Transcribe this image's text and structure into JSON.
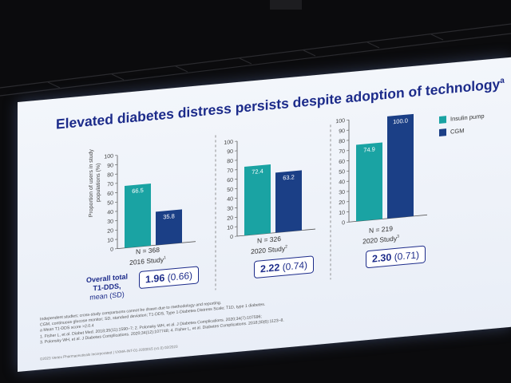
{
  "title": "Elevated diabetes distress persists despite adoption of technology",
  "title_superscript": "a",
  "ylabel_line1": "Proportion of users in study",
  "ylabel_line2": "populations (%)",
  "legend": [
    {
      "label": "Insulin pump",
      "color": "#1aa3a3"
    },
    {
      "label": "CGM",
      "color": "#1b3f86"
    }
  ],
  "panels": [
    {
      "n": "N = 368",
      "study": "2016 Study",
      "sup": "1",
      "mean": "1.96",
      "sd": "(0.66)"
    },
    {
      "n": "N = 326",
      "study": "2020 Study",
      "sup": "2",
      "mean": "2.22",
      "sd": "(0.74)"
    },
    {
      "n": "N = 219",
      "study": "2020 Study",
      "sup": "3",
      "mean": "2.30",
      "sd": "(0.71)"
    }
  ],
  "overall_label": {
    "line1": "Overall total",
    "line2": "T1-DDS,",
    "line3": "mean (SD)"
  },
  "footnotes": [
    "Independent studies; cross-study comparisons cannot be drawn due to methodology and reporting.",
    "CGM, continuous glucose monitor; SD, standard deviation; T1-DDS, Type 1-Diabetes Distress Scale; T1D, type 1 diabetes.",
    "a Mean T1-DDS score >2.0.4",
    "1. Fisher L, et al. Diabet Med. 2018;35(11):1590–7; 2. Polonsky WH, et al. J Diabetes Complications. 2020;34(7):107596;",
    "3. Polonsky WH, et al. J Diabetes Complications. 2020;34(12):107748; 4. Fisher L, et al. Diabetes Complications. 2018;30(6):1123–8."
  ],
  "copyright": "©2023 Vertex Pharmaceuticals Incorporated | VXMA-INT-01-2200015 (v1.0) 02/2023",
  "chart_data": {
    "type": "bar",
    "title": "Elevated diabetes distress persists despite adoption of technology",
    "ylabel": "Proportion of users in study populations (%)",
    "ylim": [
      0,
      100
    ],
    "yticks": [
      0,
      10,
      20,
      30,
      40,
      50,
      60,
      70,
      80,
      90,
      100
    ],
    "categories": [
      "2016 Study",
      "2020 Study",
      "2020 Study"
    ],
    "series": [
      {
        "name": "Insulin pump",
        "values": [
          66.5,
          72.4,
          74.9
        ],
        "labels": [
          "66.5",
          "72.4",
          "74.9"
        ]
      },
      {
        "name": "CGM",
        "values": [
          35.8,
          63.2,
          100.0
        ],
        "labels": [
          "35.8",
          "63.2",
          "100.0"
        ]
      }
    ],
    "legend_position": "right"
  }
}
